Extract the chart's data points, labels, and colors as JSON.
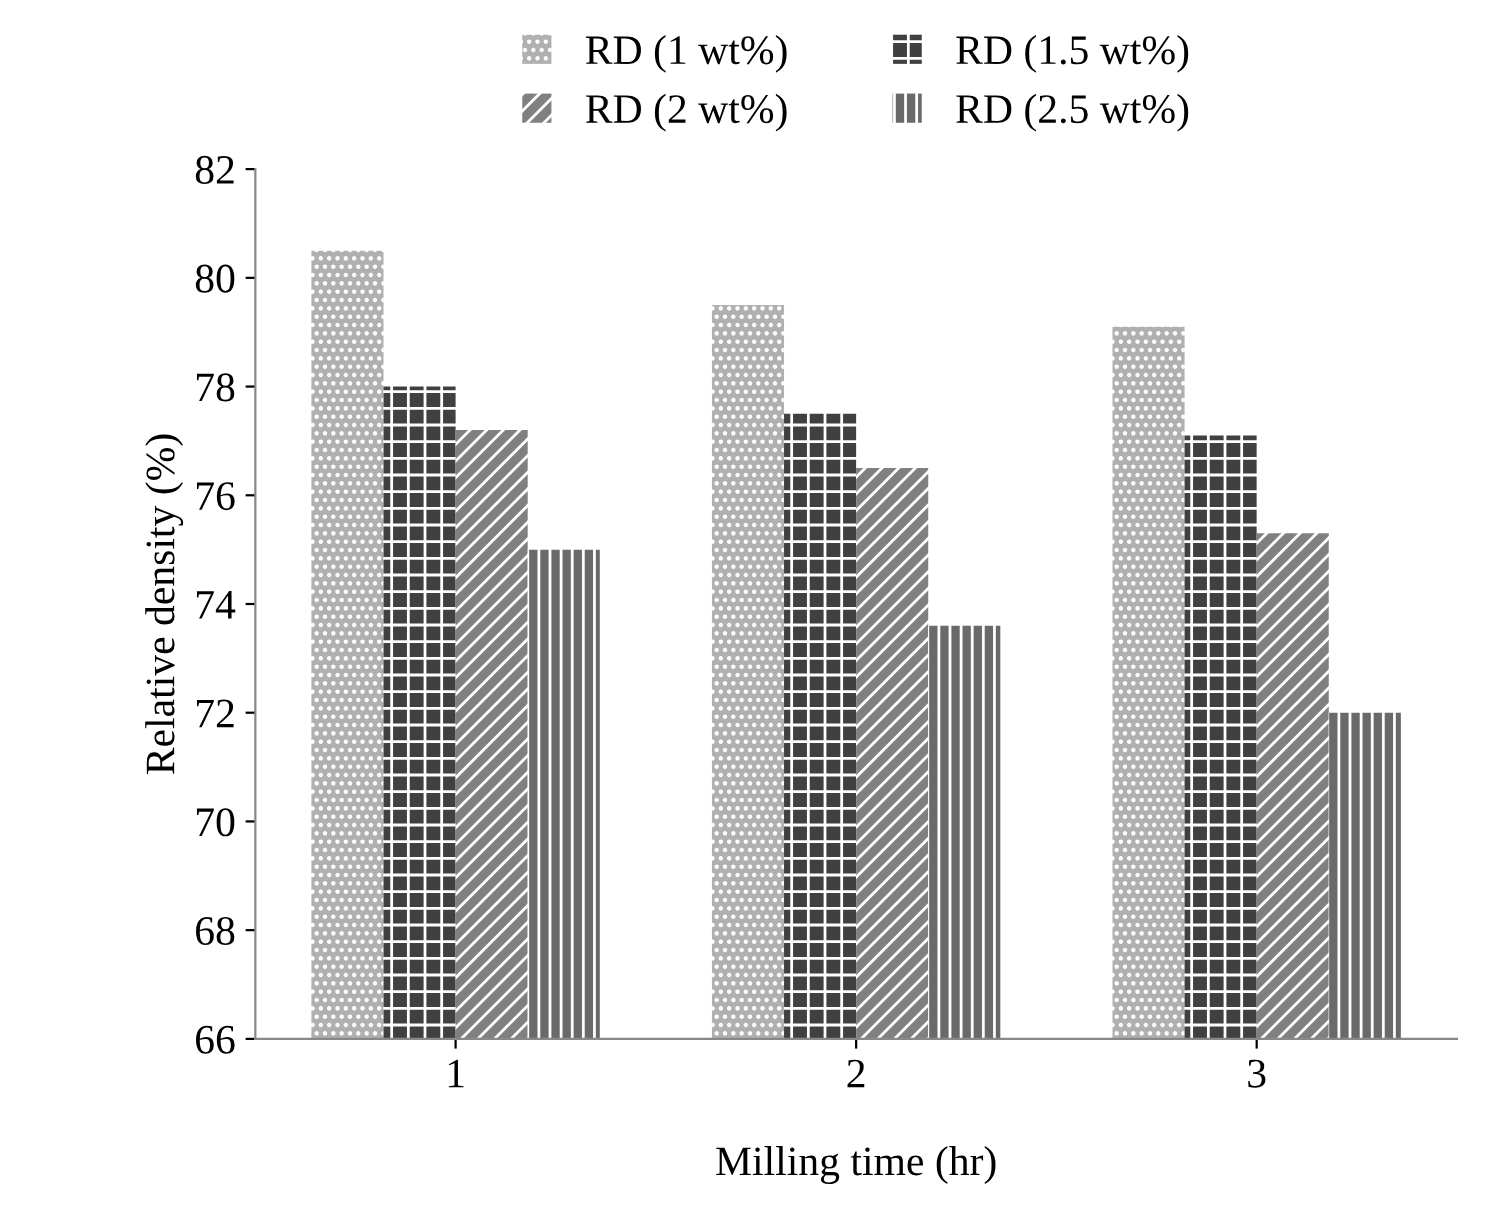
{
  "chart_data": {
    "type": "bar",
    "xlabel": "Milling time (hr)",
    "ylabel": "Relative density (%)",
    "categories": [
      "1",
      "2",
      "3"
    ],
    "series": [
      {
        "name": "RD (1 wt%)",
        "color": "#b0b0b0",
        "values": [
          80.5,
          79.5,
          79.1
        ]
      },
      {
        "name": "RD (1.5 wt%)",
        "color": "#404040",
        "values": [
          78,
          77.5,
          77.1
        ]
      },
      {
        "name": "RD (2 wt%)",
        "color": "#808080",
        "values": [
          77.2,
          76.5,
          75.3
        ]
      },
      {
        "name": "RD (2.5 wt%)",
        "color": "#6a6a6a",
        "values": [
          75,
          73.6,
          72
        ]
      }
    ],
    "ylim": [
      66,
      82
    ],
    "yticks": [
      66,
      68,
      70,
      72,
      74,
      76,
      78,
      80,
      82
    ],
    "grid": false,
    "legend": "top"
  }
}
